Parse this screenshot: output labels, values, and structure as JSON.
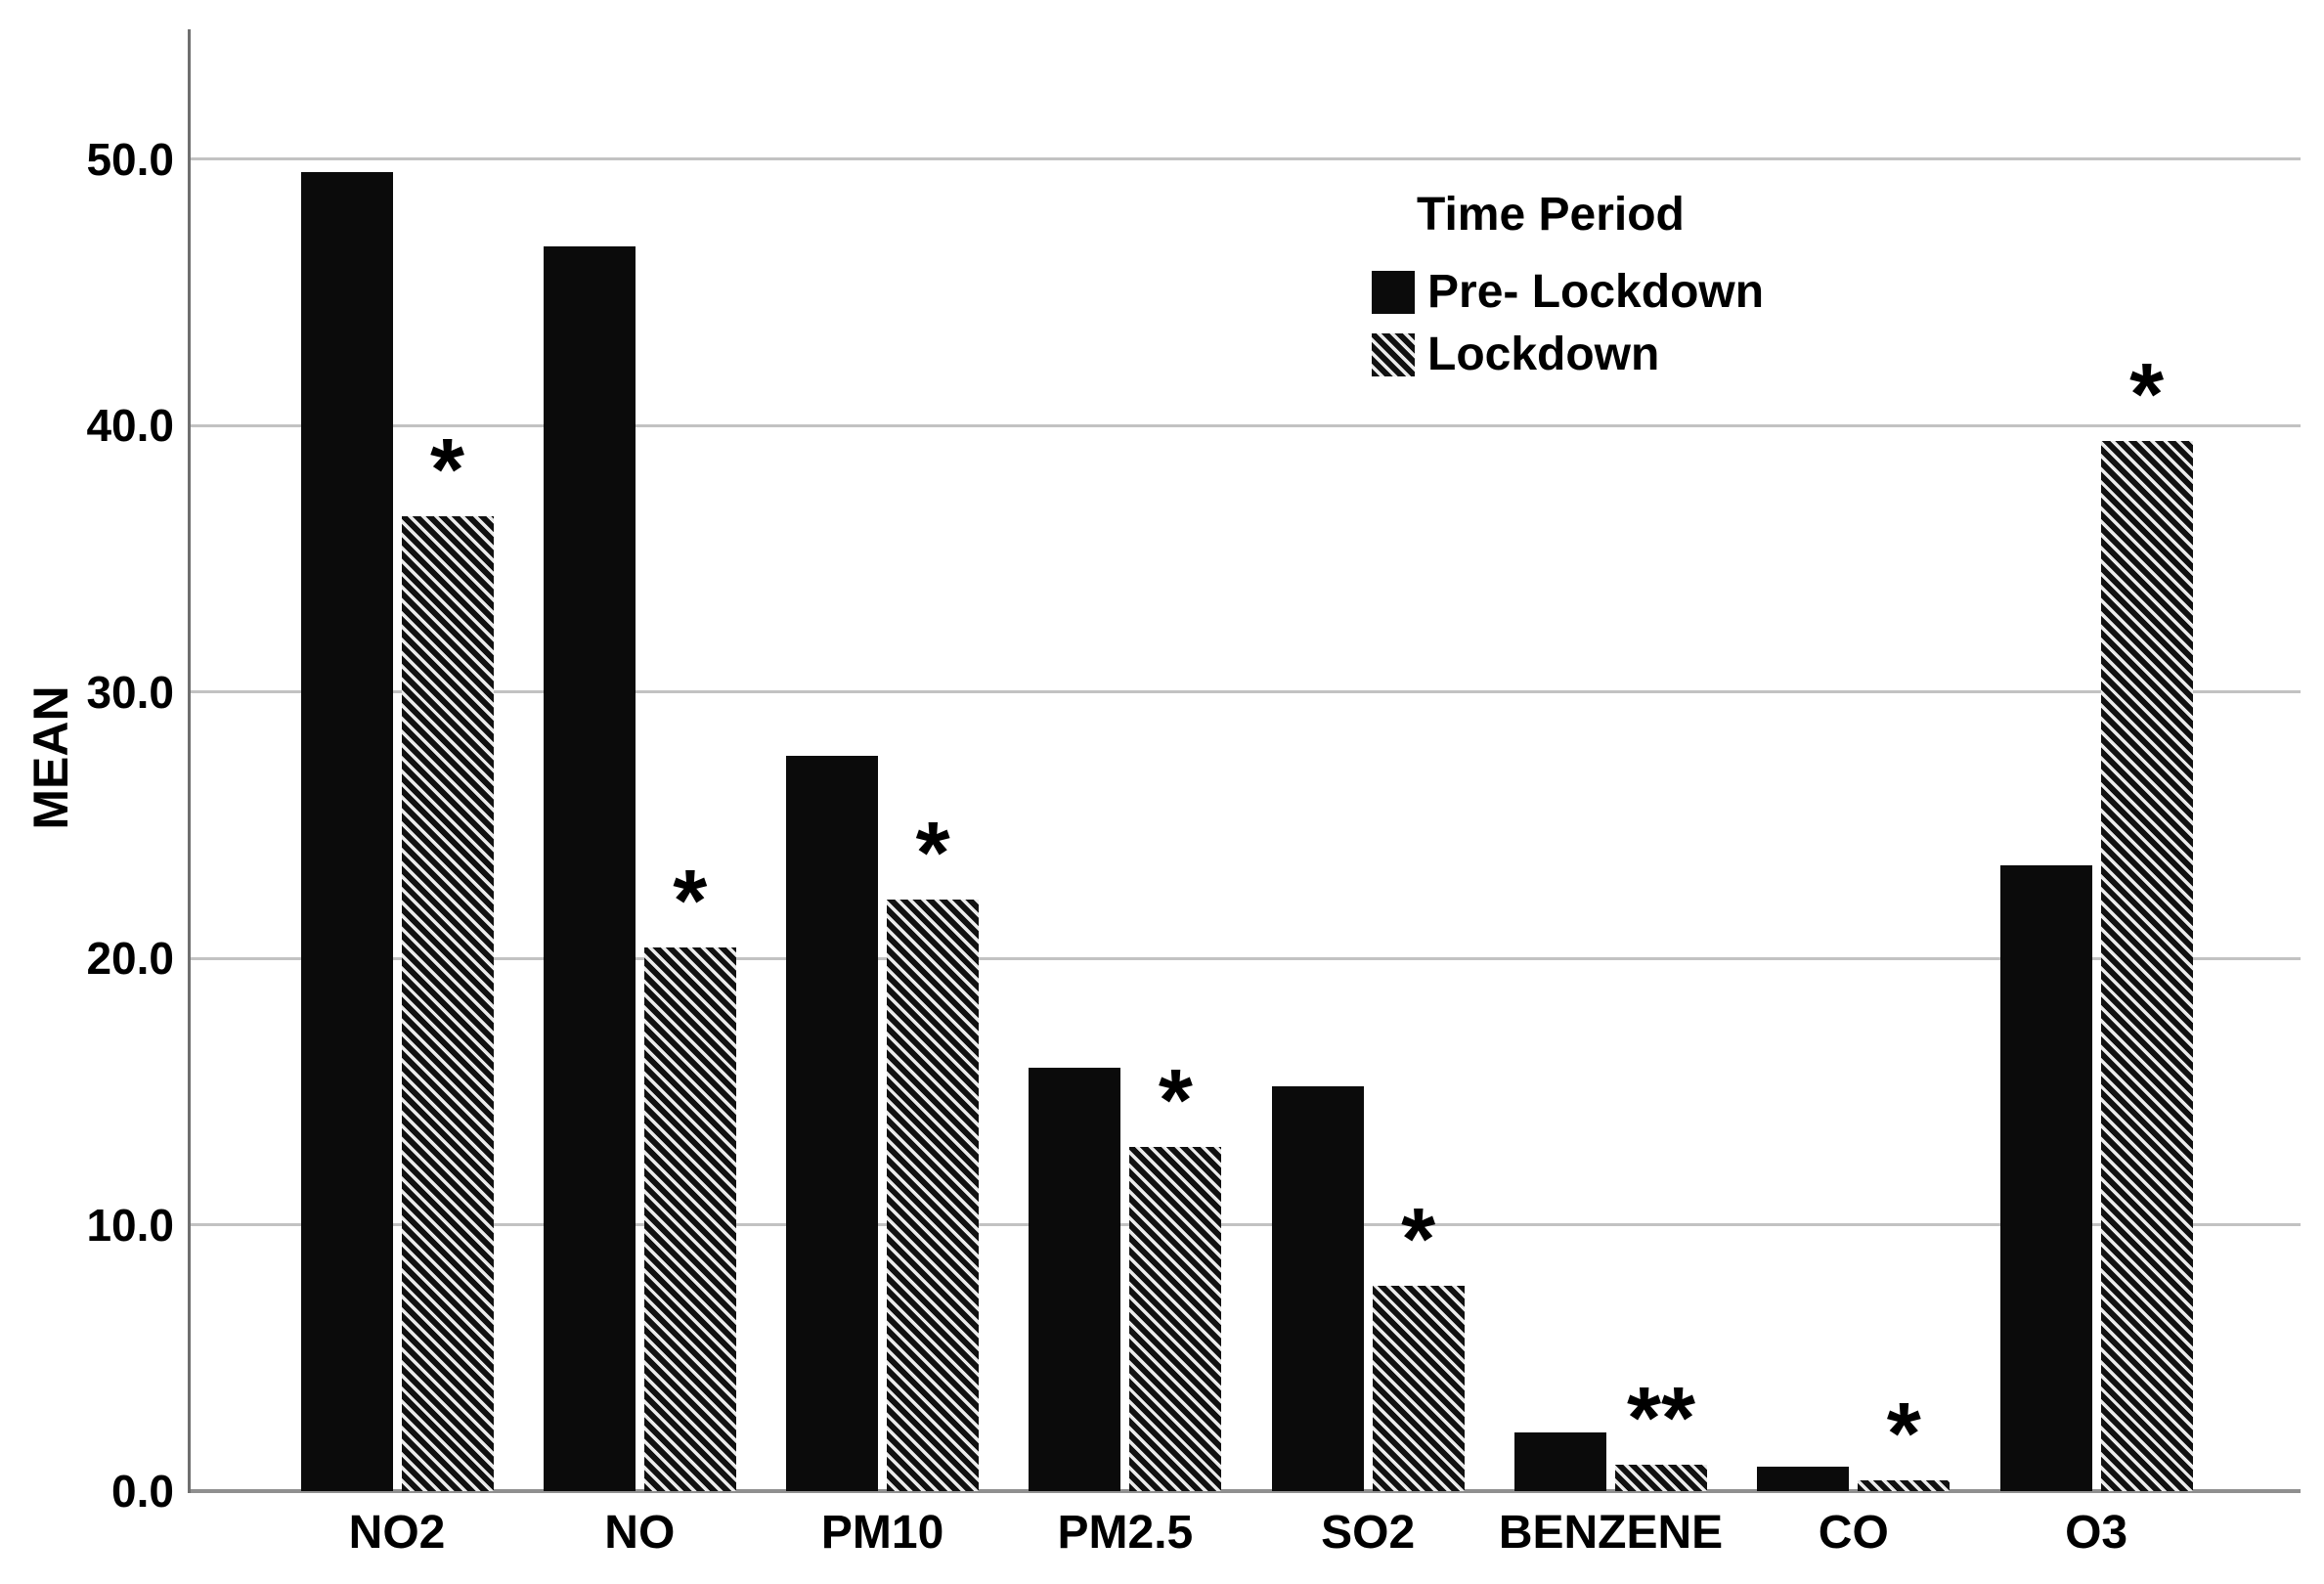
{
  "colors": {
    "background": "#ffffff",
    "bar_solid": "#0b0b0b",
    "hatch_dark": "#111111",
    "hatch_light": "#ebebeb",
    "gridline": "#c2c2c2",
    "baseline": "#8f8f8f",
    "axis_line": "#6f6f6f",
    "text": "#000000"
  },
  "chart_data": {
    "type": "bar",
    "title": "",
    "xlabel": "",
    "ylabel": "MEAN",
    "ylim": [
      0,
      55
    ],
    "yticks": [
      0,
      10,
      20,
      30,
      40,
      50
    ],
    "ytick_labels": [
      "0.0",
      "10.0",
      "20.0",
      "30.0",
      "40.0",
      "50.0"
    ],
    "grid": true,
    "categories": [
      "NO2",
      "NO",
      "PM10",
      "PM2.5",
      "SO2",
      "BENZENE",
      "CO",
      "O3"
    ],
    "series": [
      {
        "name": "Pre- Lockdown",
        "style": "solid-black",
        "values": [
          49.5,
          46.7,
          27.6,
          15.9,
          15.2,
          2.2,
          0.9,
          23.5
        ]
      },
      {
        "name": "Lockdown",
        "style": "diagonal-hatch",
        "values": [
          36.6,
          20.4,
          22.2,
          12.9,
          7.7,
          1.0,
          0.4,
          39.4
        ]
      }
    ],
    "significance_markers": [
      "*",
      "*",
      "*",
      "*",
      "*",
      "**",
      "*",
      "*"
    ],
    "significance_applies_to": "Lockdown",
    "legend": {
      "title": "Time Period",
      "position": "upper-right-inside",
      "entries": [
        {
          "label": "Pre- Lockdown",
          "style": "solid-black"
        },
        {
          "label": "Lockdown",
          "style": "diagonal-hatch"
        }
      ]
    }
  }
}
